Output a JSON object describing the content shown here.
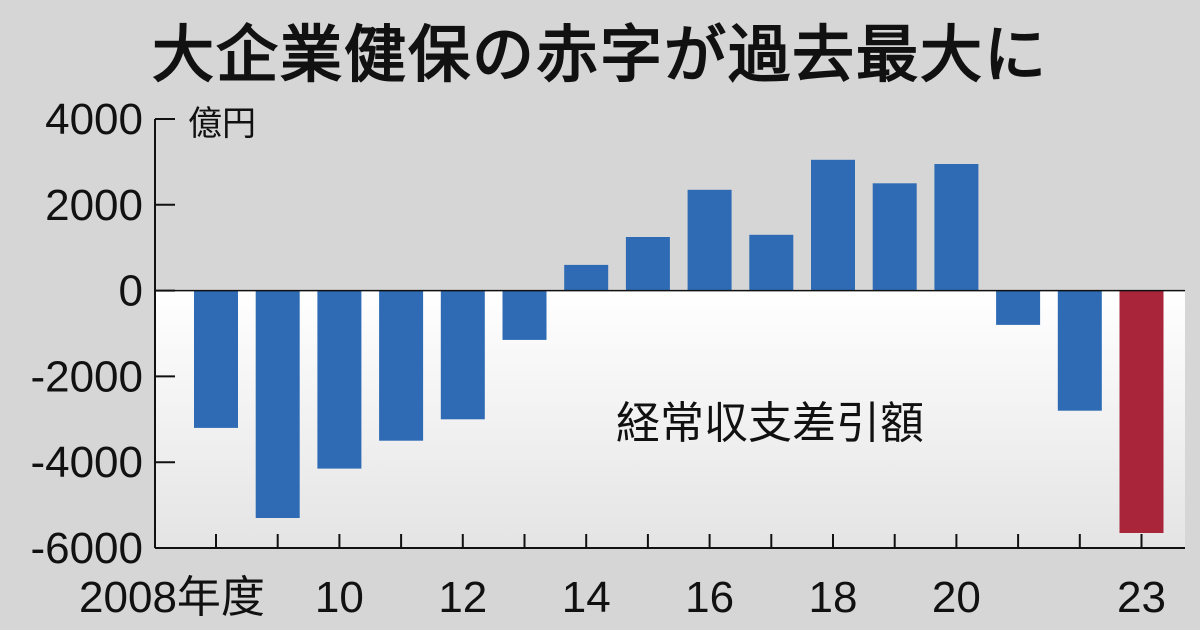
{
  "chart_data": {
    "type": "bar",
    "title": "大企業健保の赤字が過去最大に",
    "unit": "億円",
    "annotation": "経常収支差引額",
    "x_first_label": "2008年度",
    "categories": [
      "2008",
      "2009",
      "2010",
      "2011",
      "2012",
      "2013",
      "2014",
      "2015",
      "2016",
      "2017",
      "2018",
      "2019",
      "2020",
      "2021",
      "2022",
      "2023"
    ],
    "x_tick_labels": [
      "2008年度",
      "",
      "10",
      "",
      "12",
      "",
      "14",
      "",
      "16",
      "",
      "18",
      "",
      "20",
      "",
      "",
      "23"
    ],
    "values": [
      -3200,
      -5300,
      -4150,
      -3500,
      -3000,
      -1150,
      600,
      1250,
      2350,
      1300,
      3050,
      2500,
      2950,
      -800,
      -2800,
      -5650
    ],
    "highlight_index": 15,
    "ylim": [
      -6000,
      4000
    ],
    "yticks": [
      4000,
      2000,
      0,
      -2000,
      -4000,
      -6000
    ],
    "ytick_labels": [
      "4000",
      "2000",
      "0",
      "-2000",
      "-4000",
      "-6000"
    ],
    "colors": {
      "bar": "#2e6bb4",
      "highlight": "#a8253a",
      "background": "#d6d6d6",
      "negative_area": "#ffffff"
    }
  }
}
